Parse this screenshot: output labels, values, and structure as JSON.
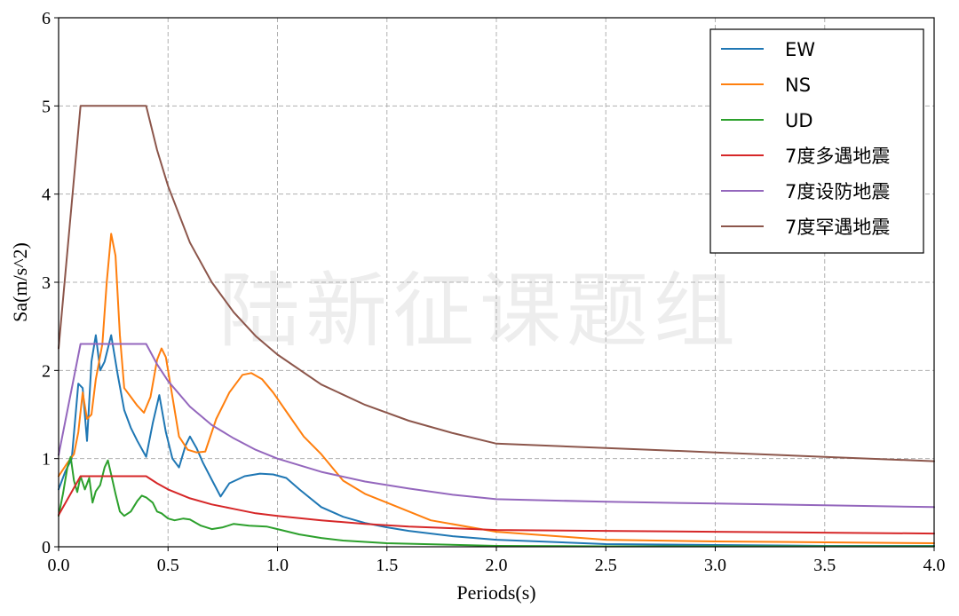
{
  "watermark": "陆新征课题组",
  "chart_data": {
    "type": "line",
    "xlabel": "Periods(s)",
    "ylabel": "Sa(m/s^2)",
    "xlim": [
      0.0,
      4.0
    ],
    "ylim": [
      0,
      6
    ],
    "xticks": [
      0.0,
      0.5,
      1.0,
      1.5,
      2.0,
      2.5,
      3.0,
      3.5,
      4.0
    ],
    "xtick_labels": [
      "0.0",
      "0.5",
      "1.0",
      "1.5",
      "2.0",
      "2.5",
      "3.0",
      "3.5",
      "4.0"
    ],
    "yticks": [
      0,
      1,
      2,
      3,
      4,
      5,
      6
    ],
    "ytick_labels": [
      "0",
      "1",
      "2",
      "3",
      "4",
      "5",
      "6"
    ],
    "grid": true,
    "legend_position": "top-right",
    "series": [
      {
        "name": "EW",
        "color": "#1f77b4",
        "x": [
          0.0,
          0.03,
          0.06,
          0.09,
          0.11,
          0.13,
          0.15,
          0.17,
          0.19,
          0.21,
          0.24,
          0.27,
          0.3,
          0.33,
          0.36,
          0.4,
          0.43,
          0.46,
          0.49,
          0.52,
          0.55,
          0.58,
          0.6,
          0.63,
          0.66,
          0.7,
          0.74,
          0.78,
          0.85,
          0.92,
          0.98,
          1.04,
          1.1,
          1.2,
          1.3,
          1.4,
          1.5,
          1.6,
          1.8,
          2.0,
          2.5,
          3.0,
          3.5,
          4.0
        ],
        "y": [
          0.65,
          0.85,
          1.0,
          1.85,
          1.8,
          1.2,
          2.1,
          2.4,
          2.0,
          2.1,
          2.4,
          1.95,
          1.55,
          1.35,
          1.2,
          1.02,
          1.4,
          1.72,
          1.3,
          1.0,
          0.9,
          1.15,
          1.25,
          1.12,
          0.95,
          0.76,
          0.57,
          0.72,
          0.8,
          0.83,
          0.82,
          0.78,
          0.65,
          0.45,
          0.34,
          0.27,
          0.22,
          0.18,
          0.12,
          0.08,
          0.03,
          0.02,
          0.01,
          0.01
        ]
      },
      {
        "name": "NS",
        "color": "#ff7f0e",
        "x": [
          0.0,
          0.04,
          0.07,
          0.09,
          0.11,
          0.13,
          0.15,
          0.17,
          0.2,
          0.22,
          0.24,
          0.26,
          0.28,
          0.3,
          0.33,
          0.36,
          0.39,
          0.42,
          0.45,
          0.47,
          0.49,
          0.52,
          0.55,
          0.59,
          0.63,
          0.67,
          0.72,
          0.78,
          0.84,
          0.88,
          0.93,
          0.98,
          1.05,
          1.12,
          1.2,
          1.3,
          1.4,
          1.5,
          1.7,
          2.0,
          2.5,
          3.0,
          3.5,
          4.0
        ],
        "y": [
          0.8,
          0.95,
          1.05,
          1.3,
          1.75,
          1.45,
          1.5,
          1.9,
          2.3,
          3.0,
          3.55,
          3.3,
          2.4,
          1.8,
          1.7,
          1.6,
          1.52,
          1.7,
          2.12,
          2.25,
          2.15,
          1.7,
          1.25,
          1.1,
          1.07,
          1.08,
          1.45,
          1.75,
          1.95,
          1.97,
          1.9,
          1.75,
          1.5,
          1.25,
          1.05,
          0.75,
          0.6,
          0.5,
          0.3,
          0.17,
          0.08,
          0.06,
          0.05,
          0.04
        ]
      },
      {
        "name": "UD",
        "color": "#2ca02c",
        "x": [
          0.0,
          0.02,
          0.04,
          0.055,
          0.07,
          0.085,
          0.1,
          0.12,
          0.14,
          0.155,
          0.17,
          0.19,
          0.21,
          0.225,
          0.24,
          0.26,
          0.28,
          0.3,
          0.33,
          0.36,
          0.38,
          0.4,
          0.43,
          0.45,
          0.47,
          0.5,
          0.53,
          0.57,
          0.6,
          0.65,
          0.7,
          0.75,
          0.8,
          0.87,
          0.95,
          1.0,
          1.1,
          1.2,
          1.3,
          1.5,
          2.0,
          2.5,
          3.0,
          3.5,
          4.0
        ],
        "y": [
          0.35,
          0.6,
          0.9,
          1.02,
          0.75,
          0.62,
          0.8,
          0.65,
          0.78,
          0.5,
          0.63,
          0.7,
          0.9,
          0.98,
          0.82,
          0.6,
          0.4,
          0.35,
          0.4,
          0.52,
          0.58,
          0.56,
          0.5,
          0.4,
          0.38,
          0.32,
          0.3,
          0.32,
          0.31,
          0.24,
          0.2,
          0.22,
          0.26,
          0.24,
          0.23,
          0.2,
          0.14,
          0.1,
          0.07,
          0.04,
          0.01,
          0.005,
          0.005,
          0.005,
          0.005
        ]
      },
      {
        "name": "7度多遇地震",
        "color": "#d62728",
        "x": [
          0.0,
          0.1,
          0.4,
          0.45,
          0.5,
          0.6,
          0.7,
          0.8,
          0.9,
          1.0,
          1.2,
          1.4,
          1.6,
          1.8,
          2.0,
          2.5,
          3.0,
          3.5,
          4.0
        ],
        "y": [
          0.36,
          0.8,
          0.8,
          0.72,
          0.65,
          0.55,
          0.48,
          0.43,
          0.38,
          0.35,
          0.3,
          0.26,
          0.23,
          0.21,
          0.19,
          0.18,
          0.17,
          0.16,
          0.15
        ]
      },
      {
        "name": "7度设防地震",
        "color": "#9467bd",
        "x": [
          0.0,
          0.1,
          0.4,
          0.45,
          0.5,
          0.6,
          0.7,
          0.8,
          0.9,
          1.0,
          1.2,
          1.4,
          1.6,
          1.8,
          2.0,
          2.5,
          3.0,
          3.5,
          4.0
        ],
        "y": [
          1.04,
          2.3,
          2.3,
          2.07,
          1.88,
          1.59,
          1.38,
          1.23,
          1.1,
          1.0,
          0.85,
          0.74,
          0.66,
          0.59,
          0.54,
          0.51,
          0.49,
          0.47,
          0.45
        ]
      },
      {
        "name": "7度罕遇地震",
        "color": "#8c564b",
        "x": [
          0.0,
          0.1,
          0.4,
          0.45,
          0.5,
          0.6,
          0.7,
          0.8,
          0.9,
          1.0,
          1.2,
          1.4,
          1.6,
          1.8,
          2.0,
          2.5,
          3.0,
          3.5,
          4.0
        ],
        "y": [
          2.25,
          5.0,
          5.0,
          4.5,
          4.09,
          3.45,
          3.0,
          2.66,
          2.39,
          2.18,
          1.84,
          1.61,
          1.43,
          1.29,
          1.17,
          1.12,
          1.07,
          1.02,
          0.97
        ]
      }
    ]
  }
}
